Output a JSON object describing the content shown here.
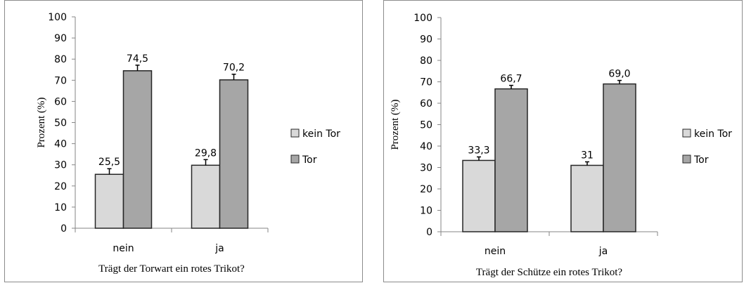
{
  "chart_data": [
    {
      "type": "bar",
      "categories": [
        "nein",
        "ja"
      ],
      "series": [
        {
          "name": "kein Tor",
          "values": [
            25.5,
            29.8
          ],
          "labels": [
            "25,5",
            "29,8"
          ],
          "color": "#d9d9d9"
        },
        {
          "name": "Tor",
          "values": [
            74.5,
            70.2
          ],
          "labels": [
            "74,5",
            "70,2"
          ],
          "color": "#a6a6a6"
        }
      ],
      "error_bars": true,
      "xlabel": "Trägt der Torwart ein rotes Trikot?",
      "ylabel": "Prozent (%)",
      "ylim": [
        0,
        100
      ],
      "yticks": [
        "0",
        "10",
        "20",
        "30",
        "40",
        "50",
        "60",
        "70",
        "80",
        "90",
        "100"
      ],
      "grid": false,
      "legend": "right"
    },
    {
      "type": "bar",
      "categories": [
        "nein",
        "ja"
      ],
      "series": [
        {
          "name": "kein Tor",
          "values": [
            33.3,
            31
          ],
          "labels": [
            "33,3",
            "31"
          ],
          "color": "#d9d9d9"
        },
        {
          "name": "Tor",
          "values": [
            66.7,
            69.0
          ],
          "labels": [
            "66,7",
            "69,0"
          ],
          "color": "#a6a6a6"
        }
      ],
      "error_bars": true,
      "xlabel": "Trägt der Schütze ein rotes Trikot?",
      "ylabel": "Prozent (%)",
      "ylim": [
        0,
        100
      ],
      "yticks": [
        "0",
        "10",
        "20",
        "30",
        "40",
        "50",
        "60",
        "70",
        "80",
        "90",
        "100"
      ],
      "grid": false,
      "legend": "right"
    }
  ]
}
